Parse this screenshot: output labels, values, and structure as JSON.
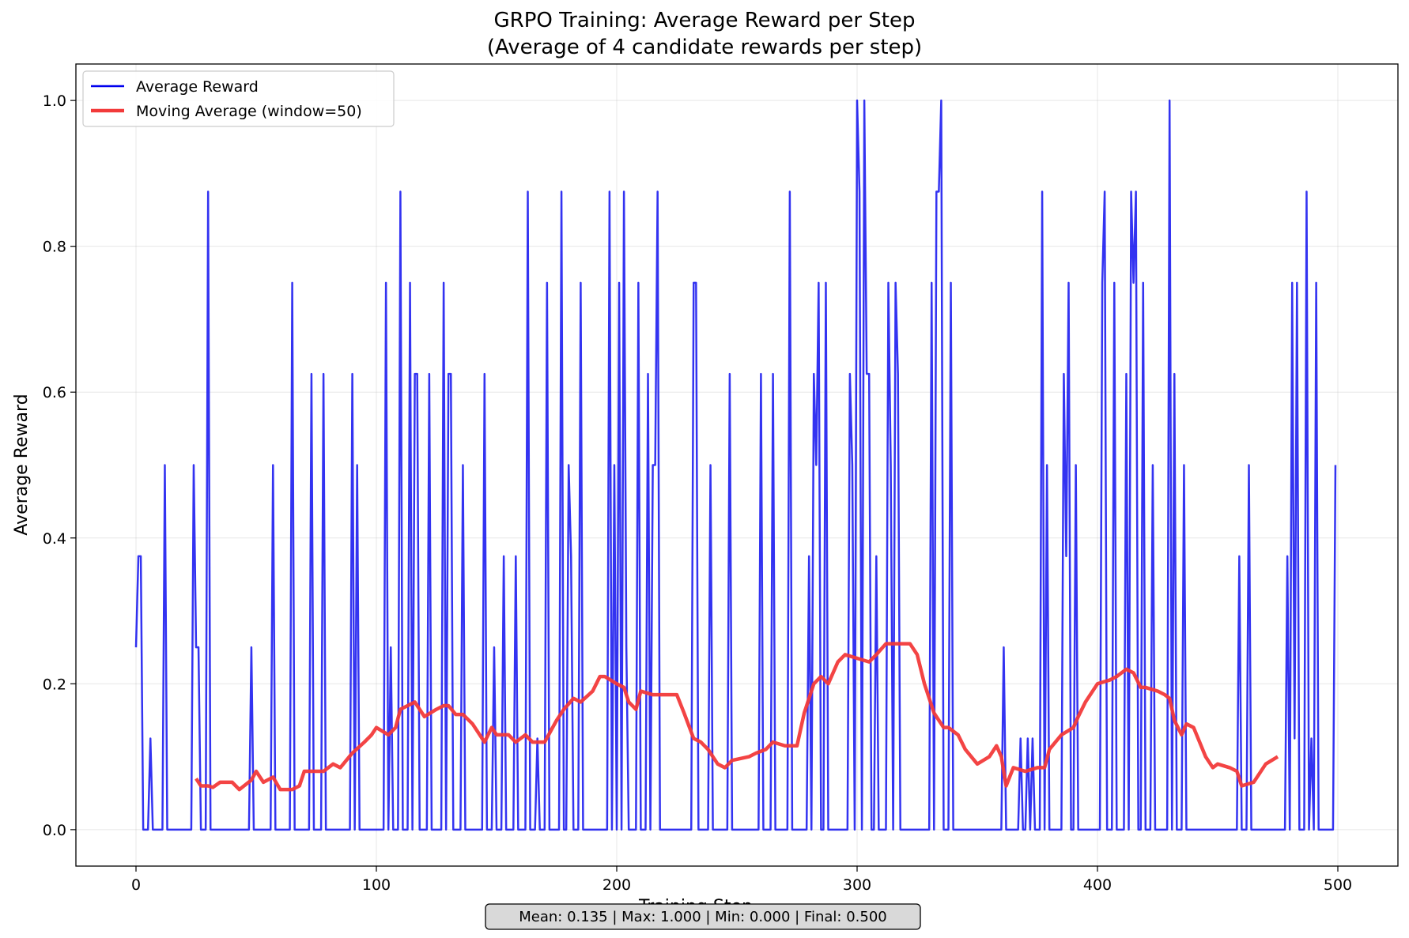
{
  "chart_data": {
    "type": "line",
    "title": "GRPO Training: Average Reward per Step",
    "subtitle": "(Average of 4 candidate rewards per step)",
    "xlabel": "Training Step",
    "ylabel": "Average Reward",
    "xlim": [
      -25,
      525
    ],
    "ylim": [
      -0.05,
      1.05
    ],
    "x_ticks": [
      0,
      100,
      200,
      300,
      400,
      500
    ],
    "y_ticks": [
      0.0,
      0.2,
      0.4,
      0.6,
      0.8,
      1.0
    ],
    "x_tick_labels": [
      "0",
      "100",
      "200",
      "300",
      "400",
      "500"
    ],
    "y_tick_labels": [
      "0.0",
      "0.2",
      "0.4",
      "0.6",
      "0.8",
      "1.0"
    ],
    "grid": true,
    "legend_position": "top-left",
    "colors": {
      "average": "#0000ee",
      "moving": "#f23a3a"
    },
    "series": [
      {
        "name": "Average Reward",
        "spikes": [
          [
            0,
            0.25
          ],
          [
            1,
            0.375
          ],
          [
            2,
            0.375
          ],
          [
            6,
            0.125
          ],
          [
            12,
            0.5
          ],
          [
            24,
            0.5
          ],
          [
            25,
            0.25
          ],
          [
            26,
            0.25
          ],
          [
            30,
            0.875
          ],
          [
            48,
            0.25
          ],
          [
            57,
            0.5
          ],
          [
            65,
            0.75
          ],
          [
            73,
            0.625
          ],
          [
            78,
            0.625
          ],
          [
            90,
            0.625
          ],
          [
            92,
            0.5
          ],
          [
            104,
            0.75
          ],
          [
            106,
            0.25
          ],
          [
            110,
            0.875
          ],
          [
            114,
            0.75
          ],
          [
            116,
            0.625
          ],
          [
            117,
            0.625
          ],
          [
            122,
            0.625
          ],
          [
            128,
            0.75
          ],
          [
            130,
            0.625
          ],
          [
            131,
            0.625
          ],
          [
            136,
            0.5
          ],
          [
            145,
            0.625
          ],
          [
            149,
            0.25
          ],
          [
            153,
            0.375
          ],
          [
            158,
            0.375
          ],
          [
            163,
            0.875
          ],
          [
            167,
            0.125
          ],
          [
            171,
            0.75
          ],
          [
            177,
            0.875
          ],
          [
            180,
            0.5
          ],
          [
            181,
            0.375
          ],
          [
            185,
            0.75
          ],
          [
            197,
            0.875
          ],
          [
            199,
            0.5
          ],
          [
            201,
            0.75
          ],
          [
            203,
            0.875
          ],
          [
            204,
            0.25
          ],
          [
            209,
            0.75
          ],
          [
            213,
            0.625
          ],
          [
            215,
            0.5
          ],
          [
            216,
            0.5
          ],
          [
            217,
            0.875
          ],
          [
            232,
            0.75
          ],
          [
            233,
            0.75
          ],
          [
            239,
            0.5
          ],
          [
            247,
            0.625
          ],
          [
            260,
            0.625
          ],
          [
            265,
            0.625
          ],
          [
            272,
            0.875
          ],
          [
            280,
            0.375
          ],
          [
            282,
            0.625
          ],
          [
            283,
            0.5
          ],
          [
            284,
            0.75
          ],
          [
            287,
            0.75
          ],
          [
            297,
            0.625
          ],
          [
            298,
            0.5
          ],
          [
            300,
            1.0
          ],
          [
            301,
            0.875
          ],
          [
            303,
            1.0
          ],
          [
            304,
            0.625
          ],
          [
            305,
            0.625
          ],
          [
            308,
            0.375
          ],
          [
            313,
            0.75
          ],
          [
            314,
            0.5
          ],
          [
            316,
            0.75
          ],
          [
            317,
            0.625
          ],
          [
            331,
            0.75
          ],
          [
            333,
            0.875
          ],
          [
            334,
            0.875
          ],
          [
            335,
            1.0
          ],
          [
            339,
            0.75
          ],
          [
            361,
            0.25
          ],
          [
            368,
            0.125
          ],
          [
            371,
            0.125
          ],
          [
            373,
            0.125
          ],
          [
            377,
            0.875
          ],
          [
            379,
            0.5
          ],
          [
            386,
            0.625
          ],
          [
            387,
            0.375
          ],
          [
            388,
            0.75
          ],
          [
            391,
            0.5
          ],
          [
            402,
            0.75
          ],
          [
            403,
            0.875
          ],
          [
            407,
            0.75
          ],
          [
            412,
            0.625
          ],
          [
            414,
            0.875
          ],
          [
            415,
            0.75
          ],
          [
            416,
            0.875
          ],
          [
            419,
            0.75
          ],
          [
            423,
            0.5
          ],
          [
            430,
            1.0
          ],
          [
            432,
            0.625
          ],
          [
            436,
            0.5
          ],
          [
            459,
            0.375
          ],
          [
            463,
            0.5
          ],
          [
            479,
            0.375
          ],
          [
            481,
            0.75
          ],
          [
            482,
            0.125
          ],
          [
            483,
            0.75
          ],
          [
            487,
            0.875
          ],
          [
            489,
            0.125
          ],
          [
            491,
            0.75
          ],
          [
            499,
            0.5
          ]
        ]
      },
      {
        "name": "Moving Average (window=50)",
        "x": [
          25,
          27,
          30,
          32,
          35,
          40,
          43,
          48,
          50,
          53,
          57,
          60,
          65,
          68,
          70,
          78,
          82,
          85,
          90,
          95,
          98,
          100,
          105,
          108,
          110,
          113,
          116,
          120,
          125,
          128,
          130,
          133,
          136,
          140,
          145,
          148,
          150,
          155,
          158,
          162,
          165,
          170,
          175,
          178,
          182,
          185,
          190,
          193,
          195,
          200,
          203,
          205,
          208,
          210,
          215,
          220,
          225,
          228,
          232,
          235,
          238,
          242,
          245,
          248,
          255,
          258,
          262,
          265,
          270,
          275,
          278,
          282,
          285,
          288,
          292,
          295,
          300,
          305,
          308,
          312,
          318,
          322,
          325,
          328,
          332,
          336,
          338,
          342,
          345,
          350,
          355,
          358,
          360,
          362,
          365,
          370,
          375,
          378,
          380,
          385,
          390,
          392,
          395,
          400,
          405,
          408,
          412,
          415,
          418,
          420,
          425,
          428,
          430,
          432,
          435,
          437,
          440,
          445,
          448,
          450,
          455,
          458,
          460,
          465,
          470,
          475
        ],
        "values": [
          0.07,
          0.06,
          0.06,
          0.058,
          0.065,
          0.065,
          0.055,
          0.068,
          0.08,
          0.065,
          0.072,
          0.055,
          0.055,
          0.06,
          0.08,
          0.08,
          0.09,
          0.085,
          0.105,
          0.12,
          0.13,
          0.14,
          0.13,
          0.14,
          0.165,
          0.17,
          0.175,
          0.155,
          0.165,
          0.17,
          0.17,
          0.158,
          0.158,
          0.145,
          0.12,
          0.14,
          0.13,
          0.13,
          0.12,
          0.13,
          0.12,
          0.12,
          0.15,
          0.165,
          0.18,
          0.175,
          0.19,
          0.21,
          0.21,
          0.2,
          0.195,
          0.175,
          0.165,
          0.19,
          0.185,
          0.185,
          0.185,
          0.16,
          0.125,
          0.12,
          0.11,
          0.09,
          0.085,
          0.095,
          0.1,
          0.105,
          0.11,
          0.12,
          0.115,
          0.115,
          0.16,
          0.2,
          0.21,
          0.2,
          0.23,
          0.24,
          0.235,
          0.23,
          0.24,
          0.255,
          0.255,
          0.255,
          0.24,
          0.2,
          0.16,
          0.14,
          0.14,
          0.13,
          0.11,
          0.09,
          0.1,
          0.115,
          0.1,
          0.06,
          0.085,
          0.08,
          0.085,
          0.085,
          0.11,
          0.13,
          0.14,
          0.155,
          0.175,
          0.2,
          0.205,
          0.21,
          0.22,
          0.215,
          0.195,
          0.195,
          0.19,
          0.185,
          0.18,
          0.15,
          0.13,
          0.145,
          0.14,
          0.1,
          0.085,
          0.09,
          0.085,
          0.08,
          0.06,
          0.065,
          0.09,
          0.1
        ]
      }
    ],
    "stats_text": "Mean: 0.135 | Max: 1.000 | Min: 0.000 | Final: 0.500"
  }
}
